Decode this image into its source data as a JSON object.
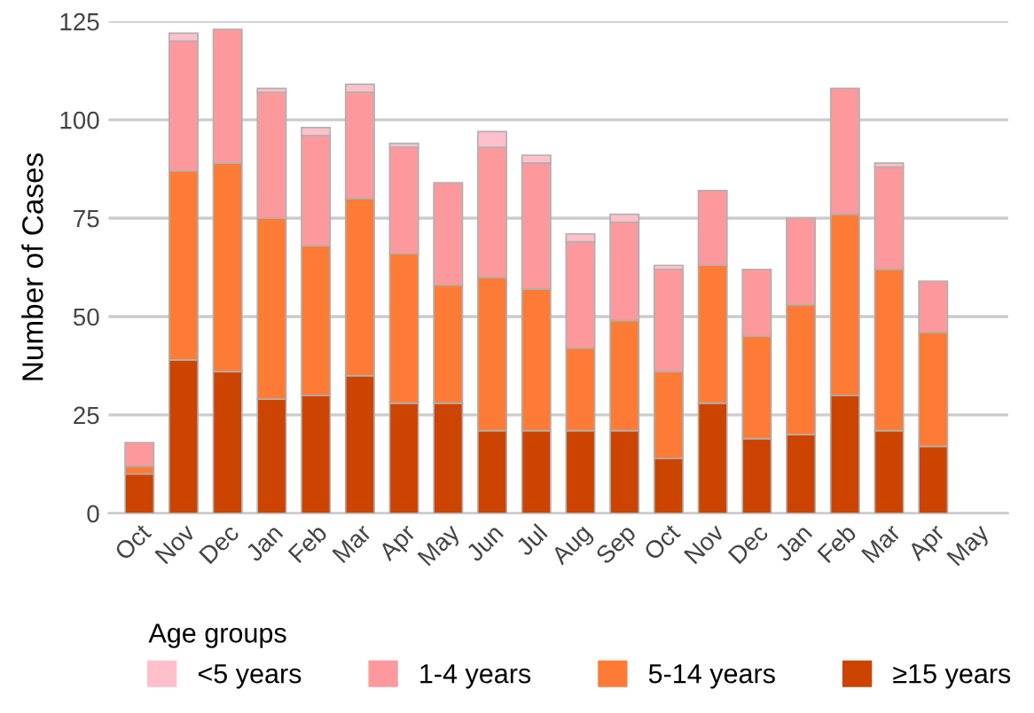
{
  "chart_data": {
    "type": "bar",
    "stacked": true,
    "ylabel": "Number of Cases",
    "legend_title": "Age groups",
    "legend": "bottom",
    "grid": "y",
    "categories": [
      "Oct",
      "Nov",
      "Dec",
      "Jan",
      "Feb",
      "Mar",
      "Apr",
      "May",
      "Jun",
      "Jul",
      "Aug",
      "Sep",
      "Oct",
      "Nov",
      "Dec",
      "Jan",
      "Feb",
      "Mar",
      "Apr",
      "May"
    ],
    "ylim": [
      0,
      125
    ],
    "yticks": [
      0,
      25,
      50,
      75,
      100,
      125
    ],
    "series": [
      {
        "name": "≥15 years",
        "color": "#cc4400",
        "values": [
          10,
          39,
          36,
          29,
          30,
          35,
          28,
          28,
          21,
          21,
          21,
          21,
          14,
          28,
          19,
          20,
          30,
          21,
          17,
          null
        ]
      },
      {
        "name": "5-14 years",
        "color": "#fd7b35",
        "values": [
          2,
          48,
          53,
          46,
          38,
          45,
          38,
          30,
          39,
          36,
          21,
          28,
          22,
          35,
          26,
          33,
          46,
          41,
          29,
          null
        ]
      },
      {
        "name": "1-4 years",
        "color": "#fd999c",
        "values": [
          6,
          33,
          34,
          32,
          28,
          27,
          27,
          26,
          33,
          32,
          27,
          25,
          26,
          19,
          17,
          22,
          32,
          26,
          13,
          null
        ]
      },
      {
        "name": "<5 years",
        "color": "#ffc0cb",
        "values": [
          0,
          2,
          0,
          1,
          2,
          2,
          1,
          0,
          4,
          2,
          2,
          2,
          1,
          0,
          0,
          0,
          0,
          1,
          0,
          null
        ]
      }
    ]
  }
}
